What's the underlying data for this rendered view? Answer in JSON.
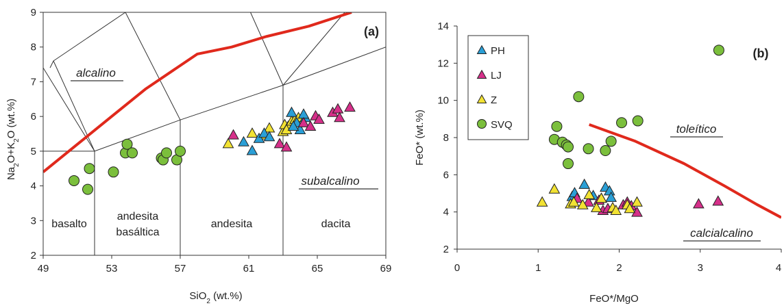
{
  "chart_data": [
    {
      "type": "scatter",
      "panel_label": "(a)",
      "xlabel": "SiO2 (wt.%)",
      "ylabel": "Na2O+K2O (wt.%)",
      "xlim": [
        49,
        69
      ],
      "ylim": [
        2,
        9
      ],
      "xticks": [
        49,
        53,
        57,
        61,
        65,
        69
      ],
      "yticks": [
        2,
        3,
        4,
        5,
        6,
        7,
        8,
        9
      ],
      "grid": false,
      "field_boundaries": [
        [
          [
            52,
            2
          ],
          [
            52,
            5
          ],
          [
            57,
            5.9
          ],
          [
            63,
            6.9
          ],
          [
            69,
            8
          ]
        ],
        [
          [
            57,
            2
          ],
          [
            57,
            5.9
          ]
        ],
        [
          [
            63,
            2
          ],
          [
            63,
            6.9
          ]
        ],
        [
          [
            49,
            5
          ],
          [
            52,
            5
          ]
        ],
        [
          [
            52,
            5
          ],
          [
            49,
            7.4
          ]
        ],
        [
          [
            52,
            5
          ],
          [
            49.6,
            7.6
          ],
          [
            53.8,
            9
          ]
        ],
        [
          [
            57,
            5.9
          ],
          [
            53.8,
            9
          ]
        ],
        [
          [
            63,
            6.9
          ],
          [
            61.1,
            9
          ]
        ],
        [
          [
            63,
            6.9
          ],
          [
            66.6,
            9
          ]
        ],
        [
          [
            49.4,
            7.4
          ],
          [
            49.6,
            7.6
          ]
        ]
      ],
      "divider_line": [
        [
          49,
          4.4
        ],
        [
          51,
          5.2
        ],
        [
          53,
          6
        ],
        [
          55,
          6.8
        ],
        [
          58,
          7.8
        ],
        [
          60,
          8
        ],
        [
          62,
          8.3
        ],
        [
          64.5,
          8.6
        ],
        [
          67,
          9
        ]
      ],
      "region_labels": {
        "basalto": "basalto",
        "andesita_basaltica_1": "andesita",
        "andesita_basaltica_2": "basáltica",
        "andesita": "andesita",
        "dacita": "dacita",
        "alcalino": "alcalino",
        "subalcalino": "subalcalino"
      },
      "series": [
        {
          "marker": "circle",
          "color": "#7bbf3c",
          "points": [
            [
              50.8,
              4.15
            ],
            [
              51.6,
              3.9
            ],
            [
              51.7,
              4.5
            ],
            [
              53.1,
              4.4
            ],
            [
              53.8,
              4.95
            ],
            [
              53.9,
              5.2
            ],
            [
              54.2,
              4.95
            ],
            [
              55.9,
              4.8
            ],
            [
              56.0,
              4.75
            ],
            [
              56.2,
              4.95
            ],
            [
              56.8,
              4.75
            ],
            [
              57.0,
              5.0
            ]
          ]
        },
        {
          "marker": "triangle",
          "color": "#f2e233",
          "points": [
            [
              59.8,
              5.2
            ],
            [
              61.2,
              5.5
            ],
            [
              61.9,
              5.45
            ],
            [
              62.2,
              5.65
            ],
            [
              63.0,
              5.55
            ],
            [
              63.1,
              5.75
            ],
            [
              63.3,
              5.7
            ],
            [
              63.5,
              5.85
            ],
            [
              63.7,
              5.9
            ],
            [
              63.9,
              5.95
            ],
            [
              63.2,
              5.6
            ]
          ]
        },
        {
          "marker": "triangle",
          "color": "#2a9fd6",
          "points": [
            [
              60.7,
              5.25
            ],
            [
              61.2,
              5.0
            ],
            [
              61.6,
              5.35
            ],
            [
              61.9,
              5.5
            ],
            [
              62.2,
              5.4
            ],
            [
              63.5,
              6.1
            ],
            [
              63.8,
              5.8
            ],
            [
              64.0,
              5.6
            ],
            [
              64.3,
              5.95
            ],
            [
              64.2,
              6.05
            ],
            [
              63.6,
              5.7
            ]
          ]
        },
        {
          "marker": "triangle",
          "color": "#d6308a",
          "points": [
            [
              60.1,
              5.45
            ],
            [
              62.8,
              5.2
            ],
            [
              63.2,
              5.1
            ],
            [
              64.2,
              5.8
            ],
            [
              64.6,
              5.7
            ],
            [
              64.9,
              6.0
            ],
            [
              65.1,
              5.9
            ],
            [
              65.9,
              6.1
            ],
            [
              66.2,
              6.2
            ],
            [
              66.3,
              5.95
            ],
            [
              66.9,
              6.25
            ]
          ]
        }
      ]
    },
    {
      "type": "scatter",
      "panel_label": "(b)",
      "xlabel": "FeO*/MgO",
      "ylabel": "FeO* (wt.%)",
      "xlim": [
        0,
        4
      ],
      "ylim": [
        2,
        14
      ],
      "xticks": [
        0,
        1,
        2,
        3,
        4
      ],
      "yticks": [
        2,
        4,
        6,
        8,
        10,
        12,
        14
      ],
      "grid": false,
      "divider_line": [
        [
          1.63,
          8.7
        ],
        [
          2.2,
          7.8
        ],
        [
          2.8,
          6.6
        ],
        [
          3.3,
          5.4
        ],
        [
          3.7,
          4.4
        ],
        [
          4.0,
          3.7
        ]
      ],
      "region_labels": {
        "toleitico": "toleítico",
        "calcialcalino": "calcialcalino"
      },
      "legend": {
        "position": "top-left",
        "entries": [
          {
            "label": "PH",
            "marker": "triangle",
            "color": "#2a9fd6"
          },
          {
            "label": "LJ",
            "marker": "triangle",
            "color": "#d6308a"
          },
          {
            "label": "Z",
            "marker": "triangle",
            "color": "#f2e233"
          },
          {
            "label": "SVQ",
            "marker": "circle",
            "color": "#7bbf3c"
          }
        ]
      },
      "series": [
        {
          "name": "SVQ",
          "marker": "circle",
          "color": "#7bbf3c",
          "points": [
            [
              1.2,
              7.9
            ],
            [
              1.23,
              8.6
            ],
            [
              1.3,
              7.75
            ],
            [
              1.35,
              7.6
            ],
            [
              1.37,
              7.5
            ],
            [
              1.37,
              6.6
            ],
            [
              1.5,
              10.2
            ],
            [
              1.62,
              7.4
            ],
            [
              1.83,
              7.3
            ],
            [
              1.9,
              7.8
            ],
            [
              2.03,
              8.8
            ],
            [
              2.23,
              8.9
            ],
            [
              3.23,
              12.7
            ]
          ]
        },
        {
          "name": "PH",
          "marker": "triangle",
          "color": "#2a9fd6",
          "points": [
            [
              1.42,
              4.8
            ],
            [
              1.45,
              5.0
            ],
            [
              1.57,
              5.45
            ],
            [
              1.68,
              4.85
            ],
            [
              1.78,
              4.7
            ],
            [
              1.83,
              5.3
            ],
            [
              1.88,
              5.1
            ],
            [
              1.9,
              4.75
            ]
          ]
        },
        {
          "name": "LJ",
          "marker": "triangle",
          "color": "#d6308a",
          "points": [
            [
              1.48,
              4.7
            ],
            [
              1.62,
              4.5
            ],
            [
              1.75,
              4.6
            ],
            [
              1.8,
              4.05
            ],
            [
              1.86,
              4.15
            ],
            [
              2.05,
              4.35
            ],
            [
              2.1,
              4.5
            ],
            [
              2.15,
              4.3
            ],
            [
              2.22,
              3.95
            ],
            [
              2.98,
              4.4
            ],
            [
              3.22,
              4.55
            ]
          ]
        },
        {
          "name": "Z",
          "marker": "triangle",
          "color": "#f2e233",
          "points": [
            [
              1.05,
              4.5
            ],
            [
              1.2,
              5.2
            ],
            [
              1.4,
              4.4
            ],
            [
              1.44,
              4.5
            ],
            [
              1.55,
              4.35
            ],
            [
              1.63,
              4.9
            ],
            [
              1.72,
              4.2
            ],
            [
              1.78,
              4.7
            ],
            [
              1.92,
              4.2
            ],
            [
              1.96,
              4.05
            ],
            [
              2.1,
              4.35
            ],
            [
              2.13,
              4.15
            ],
            [
              2.22,
              4.5
            ]
          ]
        }
      ]
    }
  ]
}
